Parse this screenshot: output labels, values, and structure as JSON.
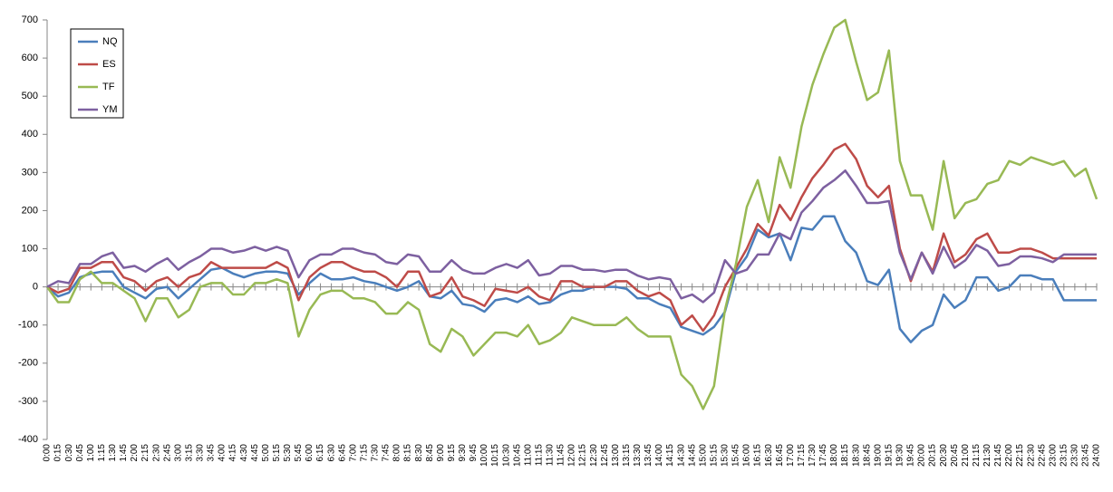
{
  "chart_data": {
    "type": "line",
    "categories": [
      "0:00",
      "0:15",
      "0:30",
      "0:45",
      "1:00",
      "1:15",
      "1:30",
      "1:45",
      "2:00",
      "2:15",
      "2:30",
      "2:45",
      "3:00",
      "3:15",
      "3:30",
      "3:45",
      "4:00",
      "4:15",
      "4:30",
      "4:45",
      "5:00",
      "5:15",
      "5:30",
      "5:45",
      "6:00",
      "6:15",
      "6:30",
      "6:45",
      "7:00",
      "7:15",
      "7:30",
      "7:45",
      "8:00",
      "8:15",
      "8:30",
      "8:45",
      "9:00",
      "9:15",
      "9:30",
      "9:45",
      "10:00",
      "10:15",
      "10:30",
      "10:45",
      "11:00",
      "11:15",
      "11:30",
      "11:45",
      "12:00",
      "12:15",
      "12:30",
      "12:45",
      "13:00",
      "13:15",
      "13:30",
      "13:45",
      "14:00",
      "14:15",
      "14:30",
      "14:45",
      "15:00",
      "15:15",
      "15:30",
      "15:45",
      "16:00",
      "16:15",
      "16:30",
      "16:45",
      "17:00",
      "17:15",
      "17:30",
      "17:45",
      "18:00",
      "18:15",
      "18:30",
      "18:45",
      "19:00",
      "19:15",
      "19:30",
      "19:45",
      "20:00",
      "20:15",
      "20:30",
      "20:45",
      "21:00",
      "21:15",
      "21:30",
      "21:45",
      "22:00",
      "22:15",
      "22:30",
      "22:45",
      "23:00",
      "23:15",
      "23:30",
      "23:45",
      "24:00"
    ],
    "series": [
      {
        "name": "NQ",
        "color": "#4a7ebb",
        "values": [
          0,
          -25,
          -15,
          25,
          35,
          40,
          40,
          0,
          -15,
          -30,
          -5,
          0,
          -30,
          -5,
          20,
          45,
          50,
          35,
          25,
          35,
          40,
          40,
          35,
          -20,
          10,
          35,
          20,
          20,
          25,
          15,
          10,
          0,
          -10,
          0,
          15,
          -25,
          -30,
          -10,
          -45,
          -50,
          -65,
          -35,
          -30,
          -40,
          -25,
          -45,
          -40,
          -20,
          -10,
          -10,
          0,
          0,
          0,
          -5,
          -30,
          -30,
          -45,
          -55,
          -105,
          -115,
          -125,
          -105,
          -65,
          40,
          80,
          150,
          130,
          140,
          70,
          155,
          150,
          185,
          185,
          120,
          90,
          15,
          5,
          45,
          -110,
          -145,
          -115,
          -100,
          -20,
          -55,
          -35,
          25,
          25,
          -10,
          0,
          30,
          30,
          20,
          20,
          -35,
          -35,
          -35,
          -35
        ]
      },
      {
        "name": "ES",
        "color": "#be4b48",
        "values": [
          0,
          -15,
          -5,
          50,
          50,
          65,
          65,
          25,
          15,
          -10,
          15,
          25,
          0,
          25,
          35,
          65,
          50,
          50,
          50,
          50,
          50,
          65,
          50,
          -35,
          25,
          50,
          65,
          65,
          50,
          40,
          40,
          25,
          0,
          40,
          40,
          -25,
          -15,
          25,
          -25,
          -35,
          -50,
          -5,
          -10,
          -15,
          0,
          -25,
          -35,
          15,
          15,
          0,
          0,
          0,
          15,
          15,
          -10,
          -25,
          -15,
          -35,
          -100,
          -75,
          -115,
          -75,
          0,
          50,
          100,
          165,
          135,
          215,
          175,
          235,
          285,
          320,
          360,
          375,
          335,
          265,
          235,
          265,
          100,
          15,
          90,
          40,
          140,
          65,
          85,
          125,
          140,
          90,
          90,
          100,
          100,
          90,
          75,
          75,
          75,
          75,
          75
        ]
      },
      {
        "name": "TF",
        "color": "#98b954",
        "values": [
          0,
          -40,
          -40,
          20,
          40,
          10,
          10,
          -10,
          -30,
          -90,
          -30,
          -30,
          -80,
          -60,
          0,
          10,
          10,
          -20,
          -20,
          10,
          10,
          20,
          10,
          -130,
          -60,
          -20,
          -10,
          -10,
          -30,
          -30,
          -40,
          -70,
          -70,
          -40,
          -60,
          -150,
          -170,
          -110,
          -130,
          -180,
          -150,
          -120,
          -120,
          -130,
          -100,
          -150,
          -140,
          -120,
          -80,
          -90,
          -100,
          -100,
          -100,
          -80,
          -110,
          -130,
          -130,
          -130,
          -230,
          -260,
          -320,
          -260,
          -60,
          60,
          210,
          280,
          170,
          340,
          260,
          420,
          530,
          610,
          680,
          700,
          590,
          490,
          510,
          620,
          330,
          240,
          240,
          150,
          330,
          180,
          220,
          230,
          270,
          280,
          330,
          320,
          340,
          330,
          320,
          330,
          290,
          310,
          230
        ]
      },
      {
        "name": "YM",
        "color": "#7d60a0",
        "values": [
          0,
          15,
          10,
          60,
          60,
          80,
          90,
          50,
          55,
          40,
          60,
          75,
          45,
          65,
          80,
          100,
          100,
          90,
          95,
          105,
          95,
          105,
          95,
          25,
          70,
          85,
          85,
          100,
          100,
          90,
          85,
          65,
          60,
          85,
          80,
          40,
          40,
          70,
          45,
          35,
          35,
          50,
          60,
          50,
          70,
          30,
          35,
          55,
          55,
          45,
          45,
          40,
          45,
          45,
          30,
          20,
          25,
          20,
          -30,
          -20,
          -40,
          -15,
          70,
          35,
          45,
          85,
          85,
          140,
          125,
          195,
          225,
          260,
          280,
          305,
          265,
          220,
          220,
          225,
          90,
          20,
          90,
          35,
          105,
          50,
          70,
          110,
          95,
          55,
          60,
          80,
          80,
          75,
          65,
          85,
          85,
          85,
          85
        ]
      }
    ],
    "ylim": [
      -400,
      700
    ],
    "yticks": [
      -400,
      -300,
      -200,
      -100,
      0,
      100,
      200,
      300,
      400,
      500,
      600,
      700
    ],
    "legend": "upper-left",
    "grid": false
  }
}
